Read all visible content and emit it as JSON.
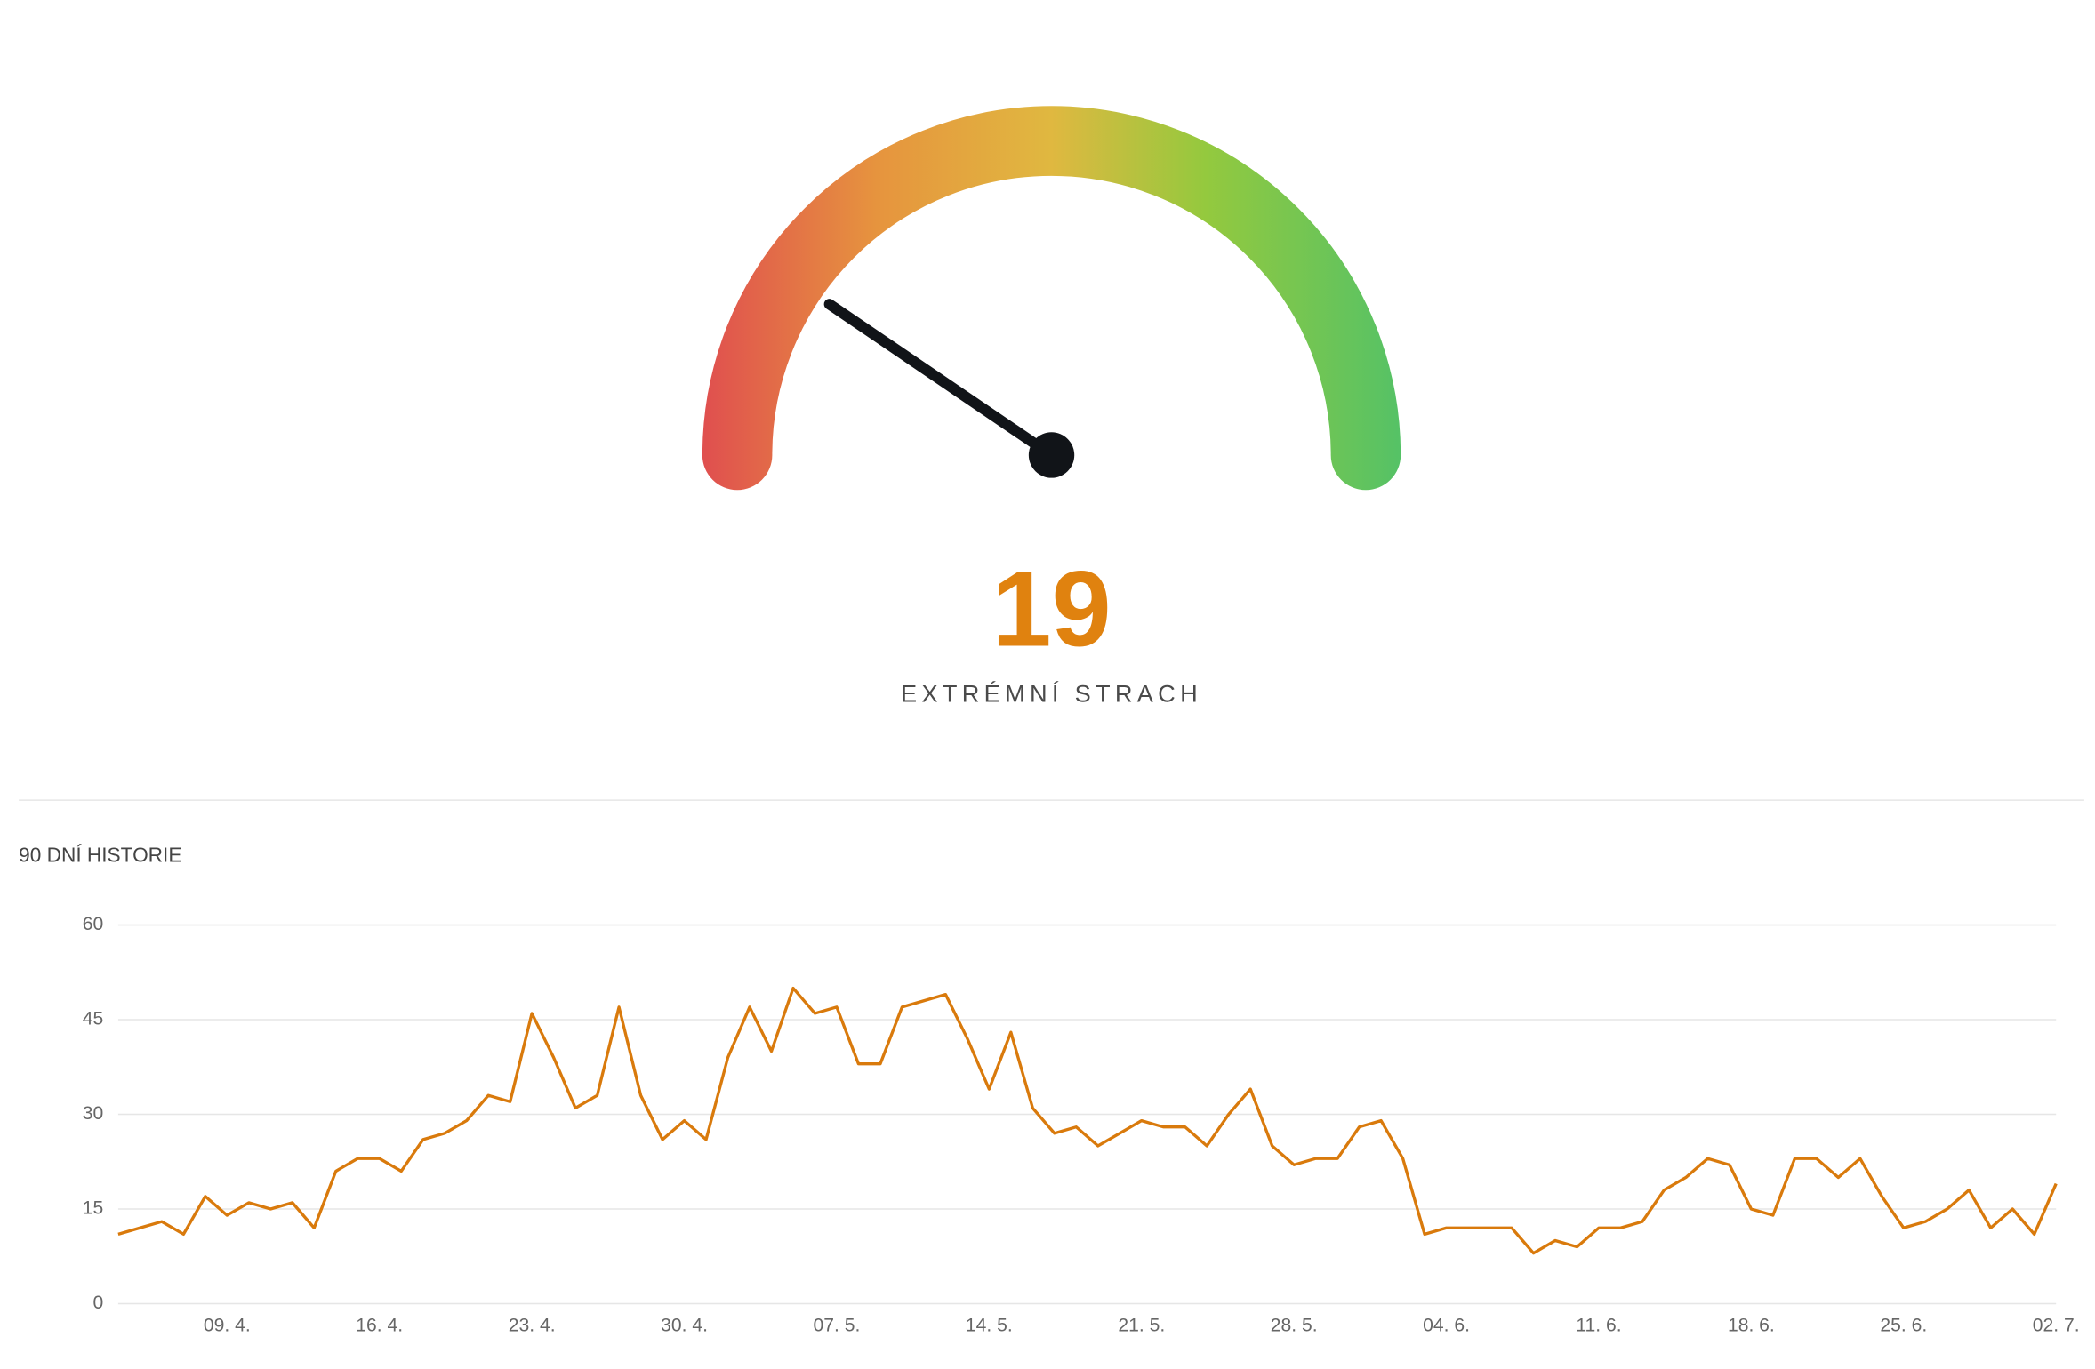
{
  "gauge": {
    "value": 19,
    "label": "EXTRÉMNÍ STRACH",
    "range": [
      0,
      100
    ],
    "color": "#e0820f"
  },
  "chart_data": {
    "type": "line",
    "title": "90 DNÍ HISTORIE",
    "color": "#d97a0c",
    "grid": true,
    "categories": [
      null,
      null,
      null,
      null,
      null,
      "09. 4.",
      null,
      null,
      null,
      null,
      null,
      null,
      "16. 4.",
      null,
      null,
      null,
      null,
      null,
      null,
      "23. 4.",
      null,
      null,
      null,
      null,
      null,
      null,
      "30. 4.",
      null,
      null,
      null,
      null,
      null,
      null,
      "07. 5.",
      null,
      null,
      null,
      null,
      null,
      null,
      "14. 5.",
      null,
      null,
      null,
      null,
      null,
      null,
      "21. 5.",
      null,
      null,
      null,
      null,
      null,
      null,
      "28. 5.",
      null,
      null,
      null,
      null,
      null,
      null,
      "04. 6.",
      null,
      null,
      null,
      null,
      null,
      null,
      "11. 6.",
      null,
      null,
      null,
      null,
      null,
      null,
      "18. 6.",
      null,
      null,
      null,
      null,
      null,
      null,
      "25. 6.",
      null,
      null,
      null,
      null,
      null,
      null,
      "02. 7."
    ],
    "values": [
      11,
      12,
      13,
      11,
      17,
      14,
      16,
      15,
      16,
      12,
      21,
      23,
      23,
      21,
      26,
      27,
      29,
      33,
      32,
      46,
      39,
      31,
      33,
      47,
      33,
      26,
      29,
      26,
      39,
      47,
      40,
      50,
      46,
      47,
      38,
      38,
      47,
      48,
      49,
      42,
      34,
      43,
      31,
      27,
      28,
      25,
      27,
      29,
      28,
      28,
      25,
      30,
      34,
      25,
      22,
      23,
      23,
      28,
      29,
      23,
      11,
      12,
      12,
      12,
      12,
      8,
      10,
      9,
      12,
      12,
      13,
      18,
      20,
      23,
      22,
      15,
      14,
      23,
      23,
      20,
      23,
      17,
      12,
      13,
      15,
      18,
      12,
      15,
      11,
      19
    ],
    "ylim": [
      0,
      60
    ],
    "yticks": [
      0,
      15,
      30,
      45,
      60
    ]
  }
}
